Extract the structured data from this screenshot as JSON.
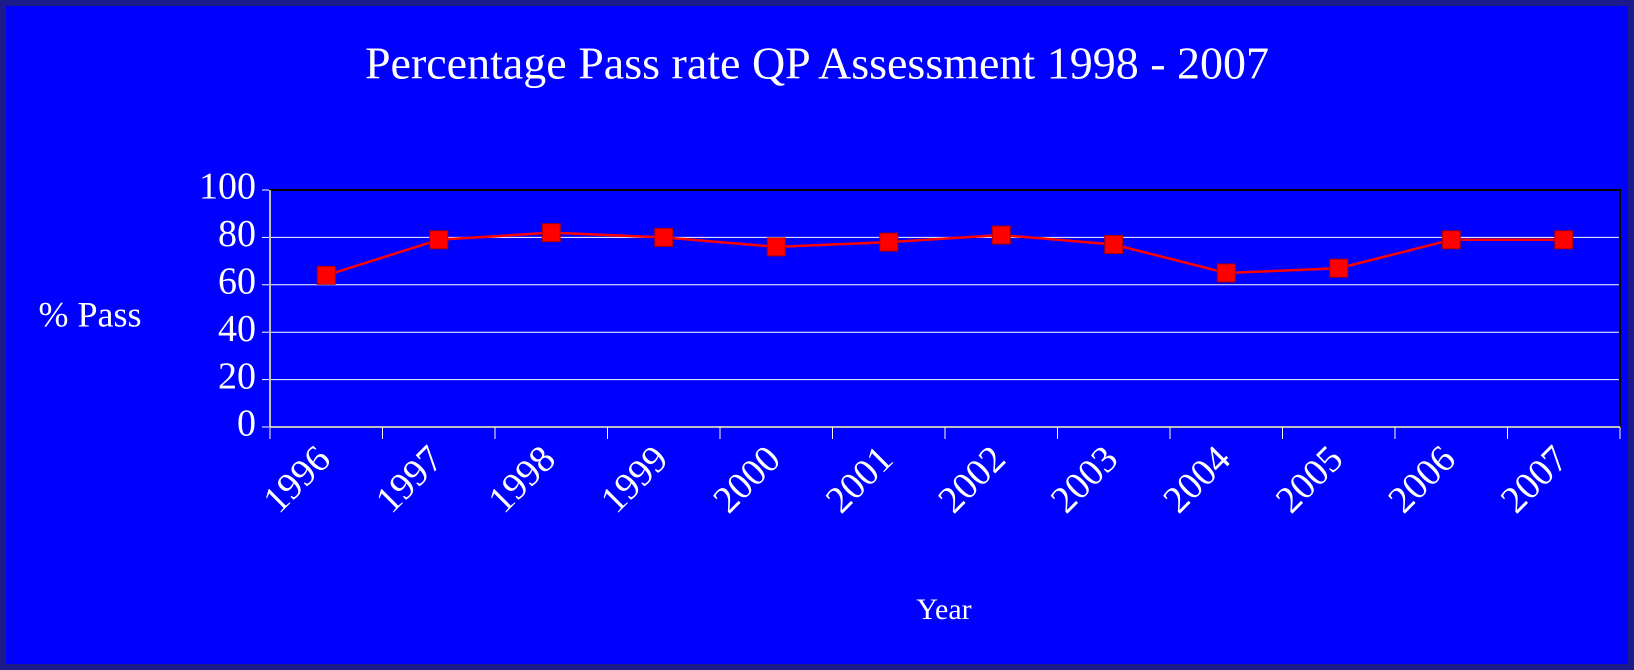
{
  "chart_data": {
    "type": "line",
    "title": "Percentage Pass rate QP Assessment 1998 - 2007",
    "x_label": "Year",
    "y_label": "% Pass",
    "categories": [
      "1996",
      "1997",
      "1998",
      "1999",
      "2000",
      "2001",
      "2002",
      "2003",
      "2004",
      "2005",
      "2006",
      "2007"
    ],
    "series": [
      {
        "name": "% Pass",
        "color": "#ff0000",
        "values": [
          64,
          79,
          82,
          80,
          76,
          78,
          81,
          77,
          65,
          67,
          79,
          79
        ]
      }
    ],
    "ylim": [
      0,
      100
    ],
    "yticks": [
      0,
      20,
      40,
      60,
      80,
      100
    ],
    "grid": true,
    "legend": false
  }
}
